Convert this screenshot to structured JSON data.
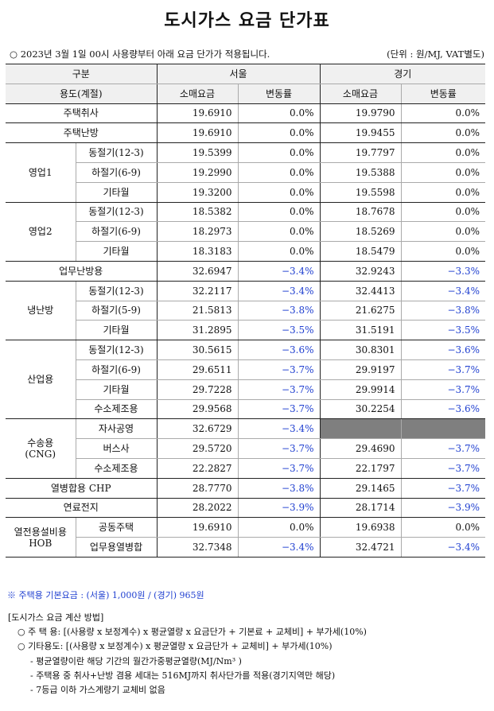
{
  "title": "도시가스 요금 단가표",
  "notice": "○ 2023년 3월 1일 00시 사용량부터 아래 요금 단가가 적용됩니다.",
  "unit": "(단위 : 원/MJ, VAT별도)",
  "header": {
    "col_group": "구분",
    "seoul": "서울",
    "gyeonggi": "경기",
    "usage": "용도(계절)",
    "retail": "소매요금",
    "change": "변동률"
  },
  "rows": {
    "residential_cooking": {
      "label": "주택취사",
      "seoul_price": "19.6910",
      "seoul_change": "0.0%",
      "gg_price": "19.9790",
      "gg_change": "0.0%"
    },
    "residential_heating": {
      "label": "주택난방",
      "seoul_price": "19.6910",
      "seoul_change": "0.0%",
      "gg_price": "19.9455",
      "gg_change": "0.0%"
    },
    "commercial1": {
      "label": "영업1",
      "winter": {
        "label": "동절기(12-3)",
        "seoul_price": "19.5399",
        "seoul_change": "0.0%",
        "gg_price": "19.7797",
        "gg_change": "0.0%"
      },
      "summer": {
        "label": "하절기(6-9)",
        "seoul_price": "19.2990",
        "seoul_change": "0.0%",
        "gg_price": "19.5388",
        "gg_change": "0.0%"
      },
      "other": {
        "label": "기타월",
        "seoul_price": "19.3200",
        "seoul_change": "0.0%",
        "gg_price": "19.5598",
        "gg_change": "0.0%"
      }
    },
    "commercial2": {
      "label": "영업2",
      "winter": {
        "label": "동절기(12-3)",
        "seoul_price": "18.5382",
        "seoul_change": "0.0%",
        "gg_price": "18.7678",
        "gg_change": "0.0%"
      },
      "summer": {
        "label": "하절기(6-9)",
        "seoul_price": "18.2973",
        "seoul_change": "0.0%",
        "gg_price": "18.5269",
        "gg_change": "0.0%"
      },
      "other": {
        "label": "기타월",
        "seoul_price": "18.3183",
        "seoul_change": "0.0%",
        "gg_price": "18.5479",
        "gg_change": "0.0%"
      }
    },
    "office_heating": {
      "label": "업무난방용",
      "seoul_price": "32.6947",
      "seoul_change": "−3.4%",
      "gg_price": "32.9243",
      "gg_change": "−3.3%"
    },
    "cooling_heating": {
      "label": "냉난방",
      "winter": {
        "label": "동절기(12-3)",
        "seoul_price": "32.2117",
        "seoul_change": "−3.4%",
        "gg_price": "32.4413",
        "gg_change": "−3.4%"
      },
      "summer": {
        "label": "하절기(5-9)",
        "seoul_price": "21.5813",
        "seoul_change": "−3.8%",
        "gg_price": "21.6275",
        "gg_change": "−3.8%"
      },
      "other": {
        "label": "기타월",
        "seoul_price": "31.2895",
        "seoul_change": "−3.5%",
        "gg_price": "31.5191",
        "gg_change": "−3.5%"
      }
    },
    "industrial": {
      "label": "산업용",
      "winter": {
        "label": "동절기(12-3)",
        "seoul_price": "30.5615",
        "seoul_change": "−3.6%",
        "gg_price": "30.8301",
        "gg_change": "−3.6%"
      },
      "summer": {
        "label": "하절기(6-9)",
        "seoul_price": "29.6511",
        "seoul_change": "−3.7%",
        "gg_price": "29.9197",
        "gg_change": "−3.7%"
      },
      "other": {
        "label": "기타월",
        "seoul_price": "29.7228",
        "seoul_change": "−3.7%",
        "gg_price": "29.9914",
        "gg_change": "−3.7%"
      },
      "hydrogen": {
        "label": "수소제조용",
        "seoul_price": "29.9568",
        "seoul_change": "−3.7%",
        "gg_price": "30.2254",
        "gg_change": "−3.6%"
      }
    },
    "transport": {
      "label": "수송용",
      "label2": "(CNG)",
      "own_station": {
        "label": "자사공영",
        "seoul_price": "32.6729",
        "seoul_change": "−3.4%"
      },
      "bus": {
        "label": "버스사",
        "seoul_price": "29.5720",
        "seoul_change": "−3.7%",
        "gg_price": "29.4690",
        "gg_change": "−3.7%"
      },
      "hydrogen": {
        "label": "수소제조용",
        "seoul_price": "22.2827",
        "seoul_change": "−3.7%",
        "gg_price": "22.1797",
        "gg_change": "−3.7%"
      }
    },
    "chp": {
      "label": "열병합용 CHP",
      "seoul_price": "28.7770",
      "seoul_change": "−3.8%",
      "gg_price": "29.1465",
      "gg_change": "−3.7%"
    },
    "fuel_cell": {
      "label": "연료전지",
      "seoul_price": "28.2022",
      "seoul_change": "−3.9%",
      "gg_price": "28.1714",
      "gg_change": "−3.9%"
    },
    "hob": {
      "label": "열전용설비용",
      "label2": "HOB",
      "apartment": {
        "label": "공동주택",
        "seoul_price": "19.6910",
        "seoul_change": "0.0%",
        "gg_price": "19.6938",
        "gg_change": "0.0%"
      },
      "office": {
        "label": "업무용열병합",
        "seoul_price": "32.7348",
        "seoul_change": "−3.4%",
        "gg_price": "32.4721",
        "gg_change": "−3.4%"
      }
    }
  },
  "note": "※ 주택용 기본요금 : (서울) 1,000원 / (경기) 965원",
  "method": {
    "title": "[도시가스 요금 계산 방법]",
    "line1": "○ 주 택 용: [(사용량 x 보정계수) x 평균열량 x 요금단가 + 기본료 + 교체비] + 부가세(10%)",
    "line2": "○ 기타용도: [(사용량 x 보정계수) x 평균열량 x 요금단가 + 교체비] + 부가세(10%)",
    "bullet1": "- 평균열량이란 해당 기간의 월간가중평균열량(MJ/Nm³ )",
    "bullet2": "- 주택용 중 취사+난방 겸용 세대는 516MJ까지 취사단가를 적용(경기지역만 해당)",
    "bullet3": "- 7등급 이하 가스계량기 교체비 없음"
  }
}
